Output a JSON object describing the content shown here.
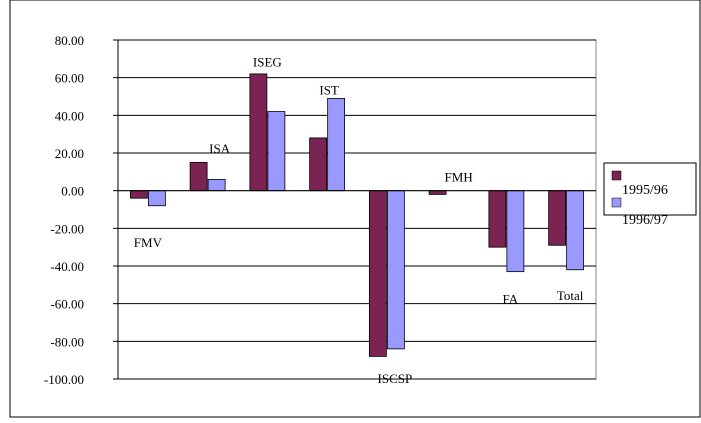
{
  "chart_data": {
    "type": "bar",
    "title": "",
    "xlabel": "",
    "ylabel": "",
    "ylim": [
      -100,
      80
    ],
    "yticks": [
      "80.00",
      "60.00",
      "40.00",
      "20.00",
      "0.00",
      "-20.00",
      "-40.00",
      "-60.00",
      "-80.00",
      "-100.00"
    ],
    "grid": true,
    "legend_position": "right",
    "categories": [
      "FMV",
      "ISA",
      "ISEG",
      "IST",
      "ISCSP",
      "FMH",
      "FA",
      "Total"
    ],
    "series": [
      {
        "name": "1995/96",
        "color": "#7b2352",
        "values": [
          -4,
          15,
          62,
          28,
          -88,
          -2,
          -30,
          -29
        ]
      },
      {
        "name": "1996/97",
        "color": "#9999ff",
        "values": [
          -8,
          6,
          42,
          49,
          -84,
          0,
          -43,
          -42
        ]
      }
    ]
  }
}
